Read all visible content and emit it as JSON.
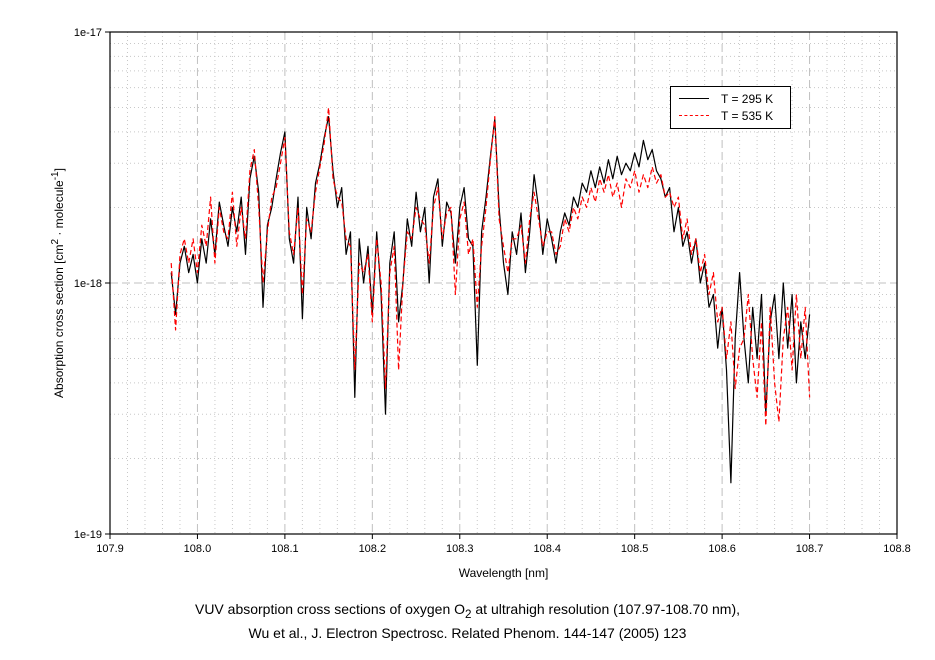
{
  "chart_data": {
    "type": "line",
    "title": "",
    "xlabel": "Wavelength [nm]",
    "ylabel": {
      "main": "Absorption cross section [cm",
      "sup1": "2",
      "mid": " · molecule",
      "sup2": "-1",
      "end": "]"
    },
    "xlim": [
      107.9,
      108.8
    ],
    "ylim": [
      1e-19,
      1e-17
    ],
    "yscale": "log",
    "x_ticks": [
      "107.9",
      "108.0",
      "108.1",
      "108.2",
      "108.3",
      "108.4",
      "108.5",
      "108.6",
      "108.7",
      "108.8"
    ],
    "y_ticks": [
      "1e-19",
      "1e-18",
      "1e-17"
    ],
    "grid": true,
    "legend_position": "top-right",
    "x_start": 107.97,
    "x_step": 0.005,
    "values_scale": 1e-18,
    "series": [
      {
        "name": "T = 295 K",
        "color": "#000000",
        "dash": "solid",
        "values": [
          1.1,
          0.75,
          1.2,
          1.4,
          1.1,
          1.3,
          1.0,
          1.5,
          1.2,
          1.8,
          1.3,
          2.1,
          1.7,
          1.4,
          2.0,
          1.6,
          2.2,
          1.3,
          2.6,
          3.2,
          2.3,
          0.8,
          1.7,
          2.0,
          2.6,
          3.3,
          4.0,
          1.5,
          1.2,
          2.2,
          0.72,
          2.0,
          1.5,
          2.5,
          3.0,
          3.8,
          4.6,
          2.8,
          2.0,
          2.4,
          1.3,
          1.6,
          0.35,
          1.5,
          1.0,
          1.4,
          0.75,
          1.6,
          0.9,
          0.3,
          1.2,
          1.6,
          0.7,
          1.0,
          1.8,
          1.4,
          2.3,
          1.6,
          2.0,
          1.0,
          2.2,
          2.6,
          1.4,
          2.1,
          1.9,
          1.2,
          2.0,
          2.4,
          1.5,
          1.4,
          0.47,
          1.6,
          2.2,
          3.2,
          4.5,
          2.0,
          1.2,
          0.9,
          1.6,
          1.3,
          1.9,
          1.1,
          1.6,
          2.7,
          2.0,
          1.3,
          1.8,
          1.5,
          1.2,
          1.6,
          1.9,
          1.7,
          2.2,
          2.0,
          2.5,
          2.3,
          2.8,
          2.4,
          2.9,
          2.5,
          3.1,
          2.6,
          3.2,
          2.7,
          3.0,
          2.8,
          3.3,
          2.9,
          3.7,
          3.1,
          3.4,
          2.8,
          2.6,
          2.2,
          2.4,
          1.6,
          2.0,
          1.4,
          1.6,
          1.2,
          1.5,
          1.0,
          1.2,
          0.8,
          0.9,
          0.55,
          0.8,
          0.45,
          0.16,
          0.6,
          1.1,
          0.6,
          0.4,
          0.8,
          0.5,
          0.9,
          0.3,
          0.7,
          0.9,
          0.5,
          1.0,
          0.55,
          0.9,
          0.4,
          0.7,
          0.5,
          0.75
        ]
      },
      {
        "name": "T = 535 K",
        "color": "#ff0000",
        "dash": "dashed",
        "values": [
          1.2,
          0.65,
          1.3,
          1.5,
          1.2,
          1.5,
          1.1,
          1.7,
          1.4,
          2.2,
          1.2,
          2.0,
          1.6,
          1.5,
          2.3,
          1.4,
          2.0,
          1.5,
          2.8,
          3.4,
          2.0,
          1.0,
          1.6,
          2.2,
          2.4,
          3.0,
          3.8,
          1.6,
          1.3,
          2.0,
          0.9,
          1.8,
          1.6,
          2.3,
          2.9,
          3.6,
          5.0,
          2.6,
          2.2,
          2.1,
          1.5,
          1.4,
          0.45,
          1.2,
          1.1,
          1.3,
          0.7,
          1.5,
          1.0,
          0.38,
          1.1,
          1.4,
          0.45,
          1.0,
          1.6,
          1.5,
          2.0,
          1.8,
          1.7,
          1.2,
          2.0,
          2.4,
          1.5,
          1.9,
          2.0,
          0.9,
          1.8,
          2.1,
          1.3,
          1.5,
          0.8,
          1.4,
          2.0,
          3.1,
          4.6,
          1.8,
          1.4,
          1.1,
          1.5,
          1.5,
          1.7,
          1.2,
          1.8,
          2.3,
          1.8,
          1.4,
          1.6,
          1.6,
          1.3,
          1.4,
          1.8,
          1.6,
          2.0,
          1.8,
          2.2,
          2.0,
          2.4,
          2.1,
          2.6,
          2.3,
          2.7,
          2.2,
          2.5,
          2.0,
          2.6,
          2.4,
          2.8,
          2.3,
          2.7,
          2.4,
          2.9,
          2.5,
          2.7,
          2.2,
          2.3,
          2.0,
          2.2,
          1.5,
          1.8,
          1.3,
          1.5,
          1.1,
          1.3,
          0.9,
          1.1,
          0.7,
          0.8,
          0.5,
          0.7,
          0.38,
          0.55,
          0.6,
          0.9,
          0.5,
          0.35,
          0.7,
          0.27,
          0.8,
          0.4,
          0.28,
          0.6,
          0.8,
          0.45,
          0.9,
          0.5,
          0.8,
          0.35
        ]
      }
    ]
  },
  "caption": {
    "line1_pre": "VUV absorption cross sections of oxygen O",
    "line1_sub": "2",
    "line1_post": " at ultrahigh resolution (107.97-108.70 nm),",
    "line2": "Wu et al.,  J. Electron Spectrosc. Related Phenom. 144-147 (2005) 123"
  }
}
